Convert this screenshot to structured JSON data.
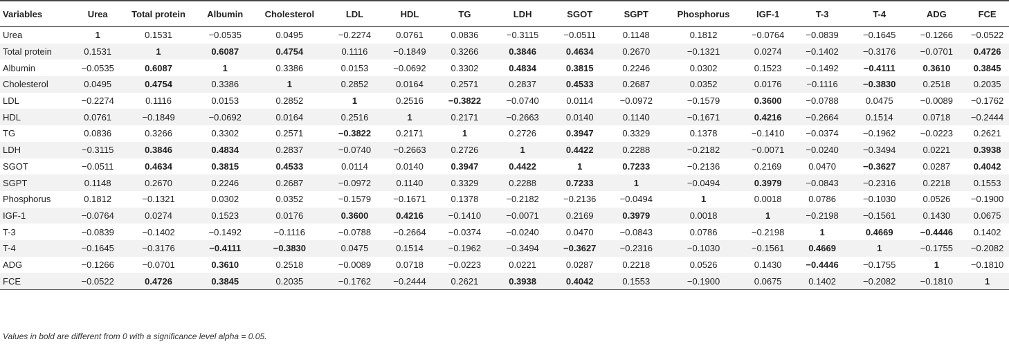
{
  "table": {
    "headers": [
      "Variables",
      "Urea",
      "Total protein",
      "Albumin",
      "Cholesterol",
      "LDL",
      "HDL",
      "TG",
      "LDH",
      "SGOT",
      "SGPT",
      "Phosphorus",
      "IGF-1",
      "T-3",
      "T-4",
      "ADG",
      "FCE"
    ],
    "rows": [
      {
        "label": "Urea",
        "values": [
          "1",
          "0.1531",
          "−0.0535",
          "0.0495",
          "−0.2274",
          "0.0761",
          "0.0836",
          "−0.3115",
          "−0.0511",
          "0.1148",
          "0.1812",
          "−0.0764",
          "−0.0839",
          "−0.1645",
          "−0.1266",
          "−0.0522"
        ],
        "bold": [
          0
        ]
      },
      {
        "label": "Total protein",
        "values": [
          "0.1531",
          "1",
          "0.6087",
          "0.4754",
          "0.1116",
          "−0.1849",
          "0.3266",
          "0.3846",
          "0.4634",
          "0.2670",
          "−0.1321",
          "0.0274",
          "−0.1402",
          "−0.3176",
          "−0.0701",
          "0.4726"
        ],
        "bold": [
          1,
          2,
          3,
          7,
          8,
          15
        ]
      },
      {
        "label": "Albumin",
        "values": [
          "−0.0535",
          "0.6087",
          "1",
          "0.3386",
          "0.0153",
          "−0.0692",
          "0.3302",
          "0.4834",
          "0.3815",
          "0.2246",
          "0.0302",
          "0.1523",
          "−0.1492",
          "−0.4111",
          "0.3610",
          "0.3845"
        ],
        "bold": [
          1,
          2,
          7,
          8,
          13,
          14,
          15
        ]
      },
      {
        "label": "Cholesterol",
        "values": [
          "0.0495",
          "0.4754",
          "0.3386",
          "1",
          "0.2852",
          "0.0164",
          "0.2571",
          "0.2837",
          "0.4533",
          "0.2687",
          "0.0352",
          "0.0176",
          "−0.1116",
          "−0.3830",
          "0.2518",
          "0.2035"
        ],
        "bold": [
          1,
          3,
          8,
          13
        ]
      },
      {
        "label": "LDL",
        "values": [
          "−0.2274",
          "0.1116",
          "0.0153",
          "0.2852",
          "1",
          "0.2516",
          "−0.3822",
          "−0.0740",
          "0.0114",
          "−0.0972",
          "−0.1579",
          "0.3600",
          "−0.0788",
          "0.0475",
          "−0.0089",
          "−0.1762"
        ],
        "bold": [
          4,
          6,
          11
        ]
      },
      {
        "label": "HDL",
        "values": [
          "0.0761",
          "−0.1849",
          "−0.0692",
          "0.0164",
          "0.2516",
          "1",
          "0.2171",
          "−0.2663",
          "0.0140",
          "0.1140",
          "−0.1671",
          "0.4216",
          "−0.2664",
          "0.1514",
          "0.0718",
          "−0.2444"
        ],
        "bold": [
          5,
          11
        ]
      },
      {
        "label": "TG",
        "values": [
          "0.0836",
          "0.3266",
          "0.3302",
          "0.2571",
          "−0.3822",
          "0.2171",
          "1",
          "0.2726",
          "0.3947",
          "0.3329",
          "0.1378",
          "−0.1410",
          "−0.0374",
          "−0.1962",
          "−0.0223",
          "0.2621"
        ],
        "bold": [
          4,
          6,
          8
        ]
      },
      {
        "label": "LDH",
        "values": [
          "−0.3115",
          "0.3846",
          "0.4834",
          "0.2837",
          "−0.0740",
          "−0.2663",
          "0.2726",
          "1",
          "0.4422",
          "0.2288",
          "−0.2182",
          "−0.0071",
          "−0.0240",
          "−0.3494",
          "0.0221",
          "0.3938"
        ],
        "bold": [
          1,
          2,
          7,
          8,
          15
        ]
      },
      {
        "label": "SGOT",
        "values": [
          "−0.0511",
          "0.4634",
          "0.3815",
          "0.4533",
          "0.0114",
          "0.0140",
          "0.3947",
          "0.4422",
          "1",
          "0.7233",
          "−0.2136",
          "0.2169",
          "0.0470",
          "−0.3627",
          "0.0287",
          "0.4042"
        ],
        "bold": [
          1,
          2,
          3,
          6,
          7,
          8,
          9,
          13,
          15
        ]
      },
      {
        "label": "SGPT",
        "values": [
          "0.1148",
          "0.2670",
          "0.2246",
          "0.2687",
          "−0.0972",
          "0.1140",
          "0.3329",
          "0.2288",
          "0.7233",
          "1",
          "−0.0494",
          "0.3979",
          "−0.0843",
          "−0.2316",
          "0.2218",
          "0.1553"
        ],
        "bold": [
          8,
          9,
          11
        ]
      },
      {
        "label": "Phosphorus",
        "values": [
          "0.1812",
          "−0.1321",
          "0.0302",
          "0.0352",
          "−0.1579",
          "−0.1671",
          "0.1378",
          "−0.2182",
          "−0.2136",
          "−0.0494",
          "1",
          "0.0018",
          "0.0786",
          "−0.1030",
          "0.0526",
          "−0.1900"
        ],
        "bold": [
          10
        ]
      },
      {
        "label": "IGF-1",
        "values": [
          "−0.0764",
          "0.0274",
          "0.1523",
          "0.0176",
          "0.3600",
          "0.4216",
          "−0.1410",
          "−0.0071",
          "0.2169",
          "0.3979",
          "0.0018",
          "1",
          "−0.2198",
          "−0.1561",
          "0.1430",
          "0.0675"
        ],
        "bold": [
          4,
          5,
          9,
          11
        ]
      },
      {
        "label": "T-3",
        "values": [
          "−0.0839",
          "−0.1402",
          "−0.1492",
          "−0.1116",
          "−0.0788",
          "−0.2664",
          "−0.0374",
          "−0.0240",
          "0.0470",
          "−0.0843",
          "0.0786",
          "−0.2198",
          "1",
          "0.4669",
          "−0.4446",
          "0.1402"
        ],
        "bold": [
          12,
          13,
          14
        ]
      },
      {
        "label": "T-4",
        "values": [
          "−0.1645",
          "−0.3176",
          "−0.4111",
          "−0.3830",
          "0.0475",
          "0.1514",
          "−0.1962",
          "−0.3494",
          "−0.3627",
          "−0.2316",
          "−0.1030",
          "−0.1561",
          "0.4669",
          "1",
          "−0.1755",
          "−0.2082"
        ],
        "bold": [
          2,
          3,
          8,
          12,
          13
        ]
      },
      {
        "label": "ADG",
        "values": [
          "−0.1266",
          "−0.0701",
          "0.3610",
          "0.2518",
          "−0.0089",
          "0.0718",
          "−0.0223",
          "0.0221",
          "0.0287",
          "0.2218",
          "0.0526",
          "0.1430",
          "−0.4446",
          "−0.1755",
          "1",
          "−0.1810"
        ],
        "bold": [
          2,
          12,
          14
        ]
      },
      {
        "label": "FCE",
        "values": [
          "−0.0522",
          "0.4726",
          "0.3845",
          "0.2035",
          "−0.1762",
          "−0.2444",
          "0.2621",
          "0.3938",
          "0.4042",
          "0.1553",
          "−0.1900",
          "0.0675",
          "0.1402",
          "−0.2082",
          "−0.1810",
          "1"
        ],
        "bold": [
          1,
          2,
          7,
          8,
          15
        ]
      }
    ]
  },
  "footnote": "Values in bold are different from 0 with a significance level alpha = 0.05."
}
